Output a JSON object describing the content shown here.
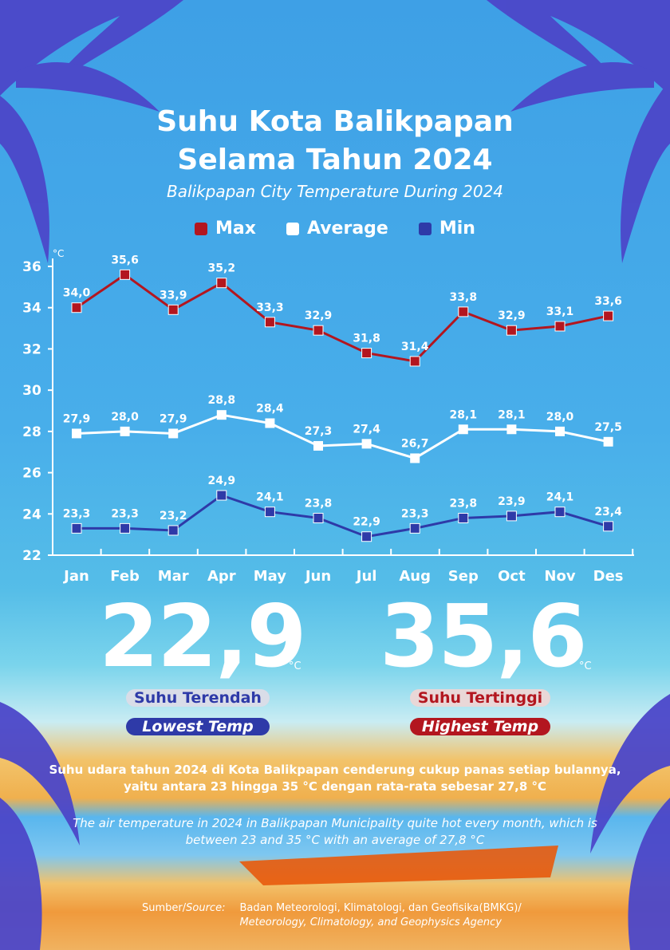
{
  "header": {
    "title_line1": "Suhu Kota Balikpapan",
    "title_line2": "Selama Tahun 2024",
    "subtitle": "Balikpapan City Temperature During 2024"
  },
  "legend": [
    {
      "label": "Max",
      "color": "#b3161f"
    },
    {
      "label": "Average",
      "color": "#ffffff"
    },
    {
      "label": "Min",
      "color": "#2e3aa8"
    }
  ],
  "chart_data": {
    "type": "line",
    "title": "Suhu Kota Balikpapan Selama Tahun 2024",
    "ylabel": "°C",
    "ylim": [
      22,
      36
    ],
    "yticks": [
      22,
      24,
      26,
      28,
      30,
      32,
      34,
      36
    ],
    "categories": [
      "Jan",
      "Feb",
      "Mar",
      "Apr",
      "May",
      "Jun",
      "Jul",
      "Aug",
      "Sep",
      "Oct",
      "Nov",
      "Des"
    ],
    "series": [
      {
        "name": "Max",
        "color": "#b3161f",
        "values": [
          34.0,
          35.6,
          33.9,
          35.2,
          33.3,
          32.9,
          31.8,
          31.4,
          33.8,
          32.9,
          33.1,
          33.6
        ],
        "labels": [
          "34,0",
          "35,6",
          "33,9",
          "35,2",
          "33,3",
          "32,9",
          "31,8",
          "31,4",
          "33,8",
          "32,9",
          "33,1",
          "33,6"
        ]
      },
      {
        "name": "Average",
        "color": "#ffffff",
        "values": [
          27.9,
          28.0,
          27.9,
          28.8,
          28.4,
          27.3,
          27.4,
          26.7,
          28.1,
          28.1,
          28.0,
          27.5
        ],
        "labels": [
          "27,9",
          "28,0",
          "27,9",
          "28,8",
          "28,4",
          "27,3",
          "27,4",
          "26,7",
          "28,1",
          "28,1",
          "28,0",
          "27,5"
        ]
      },
      {
        "name": "Min",
        "color": "#2e3aa8",
        "values": [
          23.3,
          23.3,
          23.2,
          24.9,
          24.1,
          23.8,
          22.9,
          23.3,
          23.8,
          23.9,
          24.1,
          23.4
        ],
        "labels": [
          "23,3",
          "23,3",
          "23,2",
          "24,9",
          "24,1",
          "23,8",
          "22,9",
          "23,3",
          "23,8",
          "23,9",
          "24,1",
          "23,4"
        ]
      }
    ]
  },
  "stats": {
    "lowest": {
      "value": "22,9",
      "unit": "°C",
      "label_id": "Suhu Terendah",
      "label_en": "Lowest Temp"
    },
    "highest": {
      "value": "35,6",
      "unit": "°C",
      "label_id": "Suhu Tertinggi",
      "label_en": "Highest Temp"
    }
  },
  "description": {
    "id": "Suhu udara tahun 2024 di Kota Balikpapan cenderung cukup panas setiap bulannya, yaitu antara 23 hingga 35 °C dengan rata-rata sebesar 27,8 °C",
    "en": "The air temperature in 2024 in Balikpapan Municipality quite hot every month, which is between 23 and 35 °C with an average of 27,8 °C"
  },
  "source": {
    "label_id": "Sumber/",
    "label_en": "Source:",
    "line1": "Badan Meteorologi, Klimatologi, dan Geofisika(BMKG)/",
    "line2": "Meteorology, Climatology, and Geophysics Agency"
  },
  "colors": {
    "low_pill_bg": "#d9dde8",
    "low_text": "#2e3aa8",
    "low_en_bg": "#2e3aa8",
    "high_pill_bg": "#e9d7d7",
    "high_text": "#b3161f",
    "high_en_bg": "#b3161f"
  }
}
